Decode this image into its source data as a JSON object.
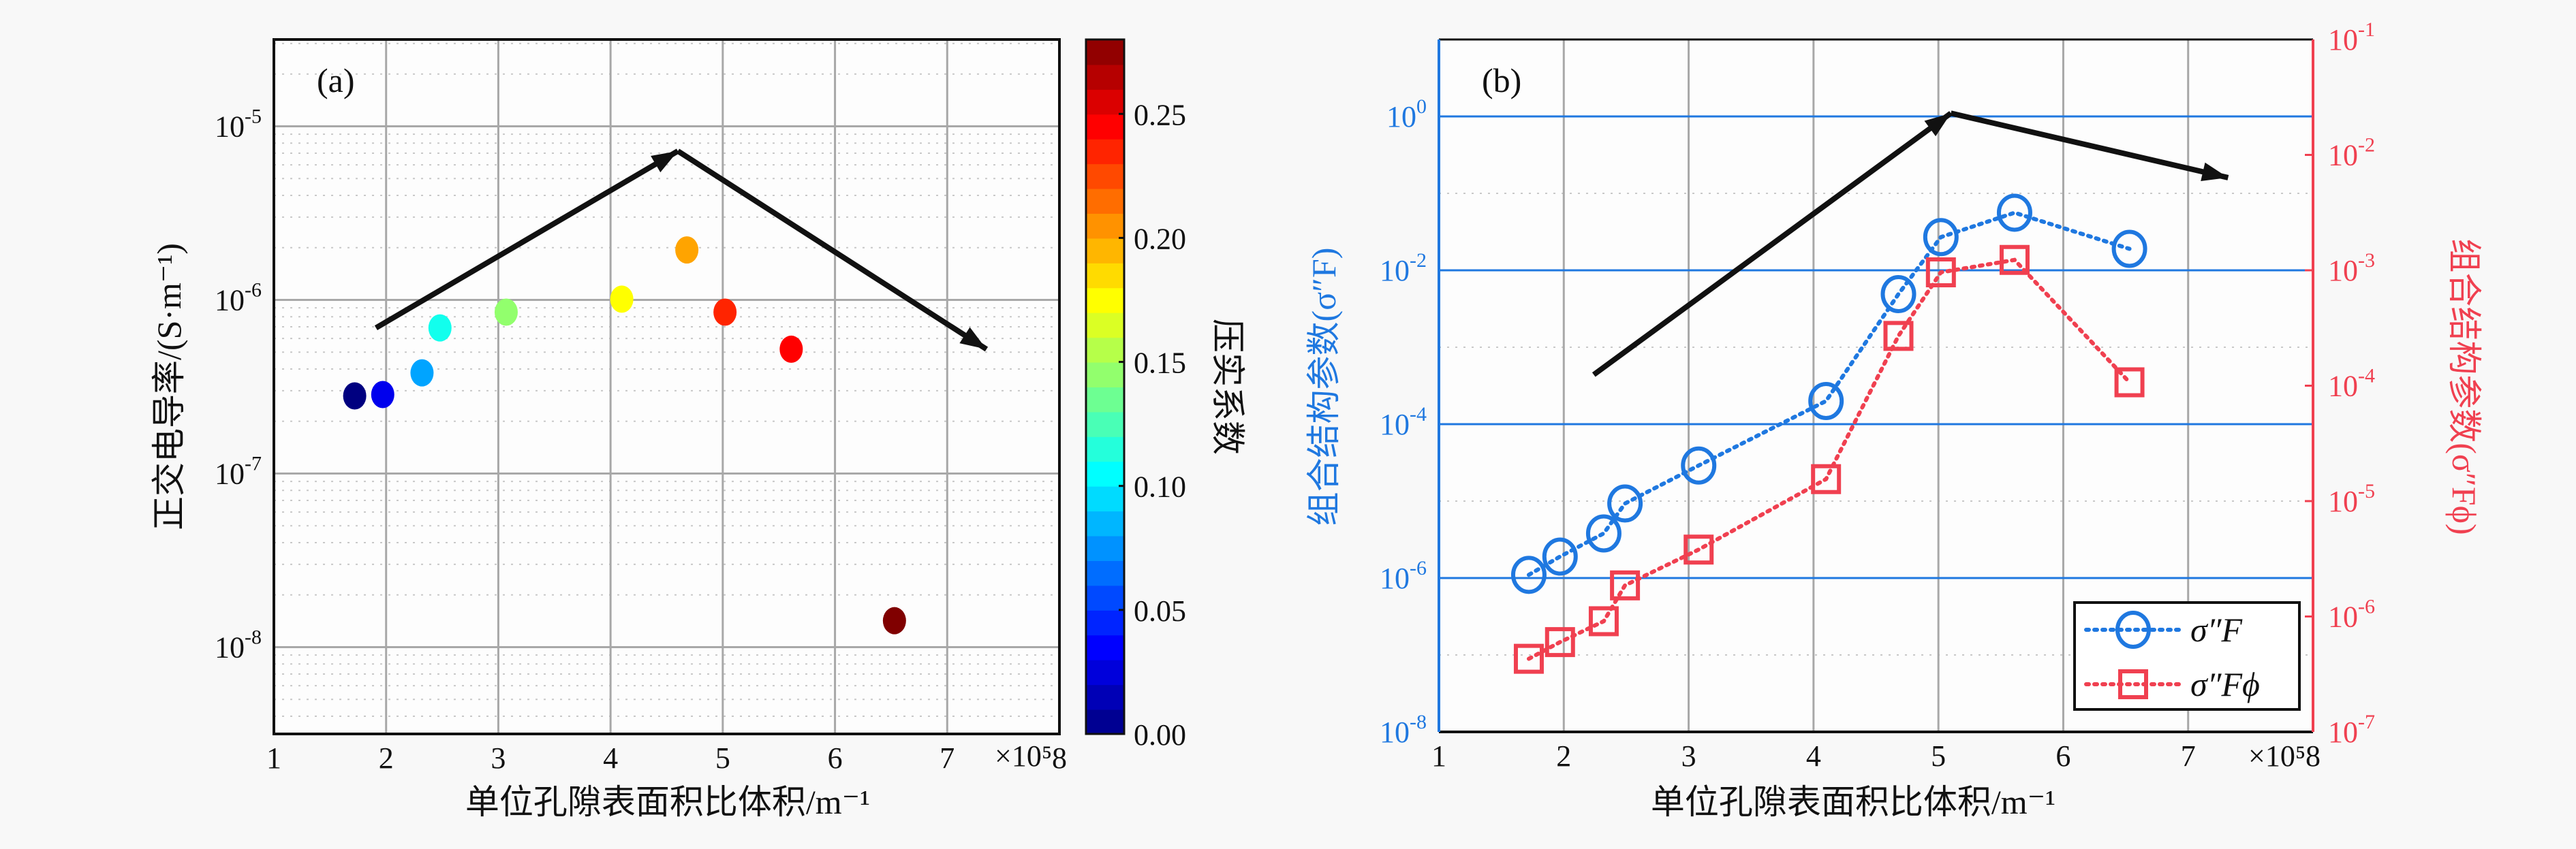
{
  "chart_data": [
    {
      "type": "scatter",
      "panel_label": "(a)",
      "xlabel": "单位孔隙表面积比体积/m⁻¹",
      "x_multiplier": "×10⁵",
      "ylabel": "正交电导率/(S·m⁻¹)",
      "xlim": [
        1,
        8
      ],
      "xticks": [
        1,
        2,
        3,
        4,
        5,
        6,
        7,
        8
      ],
      "ylog": true,
      "ylim_exp": [
        -8.5,
        -4.5
      ],
      "yticks_exp": [
        -8,
        -7,
        -6,
        -5
      ],
      "grid": true,
      "colorbar": {
        "label": "压实系数",
        "range": [
          0,
          0.28
        ],
        "ticks": [
          "0.00",
          "0.05",
          "0.10",
          "0.15",
          "0.20",
          "0.25"
        ],
        "colormap": "jet"
      },
      "points": [
        {
          "x": 1.72,
          "y": 2.8e-07,
          "c": 0.0
        },
        {
          "x": 1.97,
          "y": 2.85e-07,
          "c": 0.03
        },
        {
          "x": 2.32,
          "y": 3.8e-07,
          "c": 0.08
        },
        {
          "x": 2.48,
          "y": 6.9e-07,
          "c": 0.11
        },
        {
          "x": 3.07,
          "y": 8.5e-07,
          "c": 0.145
        },
        {
          "x": 4.1,
          "y": 1.01e-06,
          "c": 0.175
        },
        {
          "x": 4.68,
          "y": 1.94e-06,
          "c": 0.2
        },
        {
          "x": 5.02,
          "y": 8.5e-07,
          "c": 0.235
        },
        {
          "x": 5.61,
          "y": 5.2e-07,
          "c": 0.245
        },
        {
          "x": 6.53,
          "y": 1.42e-08,
          "c": 0.28
        }
      ],
      "trend_arrow": [
        [
          1.91,
          6.9e-07
        ],
        [
          4.6,
          7.2e-06
        ],
        [
          7.35,
          5.2e-07
        ]
      ]
    },
    {
      "type": "line",
      "panel_label": "(b)",
      "xlabel": "单位孔隙表面积比体积/m⁻¹",
      "x_multiplier": "×10⁵",
      "ylabel_left": "组合结构参数(σ″F)",
      "ylabel_right": "组合结构参数(σ″Fϕ)",
      "xlim": [
        1,
        8
      ],
      "xticks": [
        1,
        2,
        3,
        4,
        5,
        6,
        7,
        8
      ],
      "ylim_left_exp": [
        -8,
        1
      ],
      "yticks_left_exp": [
        -8,
        -6,
        -4,
        -2,
        0
      ],
      "ylim_right_exp": [
        -7,
        -1
      ],
      "yticks_right_exp": [
        -7,
        -6,
        -5,
        -4,
        -3,
        -2,
        -1
      ],
      "legend_position": "bottom-right",
      "colors": {
        "left": "#1f78e0",
        "right": "#f04050"
      },
      "series": [
        {
          "name": "σ″F",
          "axis": "left",
          "marker": "circle",
          "x": [
            1.72,
            1.97,
            2.32,
            2.49,
            3.08,
            4.1,
            4.68,
            5.02,
            5.61,
            6.53
          ],
          "y": [
            1.1e-06,
            1.9e-06,
            3.8e-06,
            9.3e-06,
            2.9e-05,
            0.0002,
            0.0049,
            0.027,
            0.056,
            0.019
          ]
        },
        {
          "name": "σ″Fϕ",
          "axis": "right",
          "marker": "square",
          "x": [
            1.72,
            1.97,
            2.32,
            2.49,
            3.08,
            4.1,
            4.68,
            5.02,
            5.61,
            6.53
          ],
          "y": [
            4.3e-07,
            6e-07,
            9.1e-07,
            1.86e-06,
            3.8e-06,
            1.55e-05,
            0.00027,
            0.00096,
            0.00123,
            0.000107
          ]
        }
      ],
      "trend_arrow": [
        [
          2.24,
          0.00044
        ],
        [
          5.1,
          1.1
        ],
        [
          7.32,
          0.16
        ]
      ]
    }
  ]
}
